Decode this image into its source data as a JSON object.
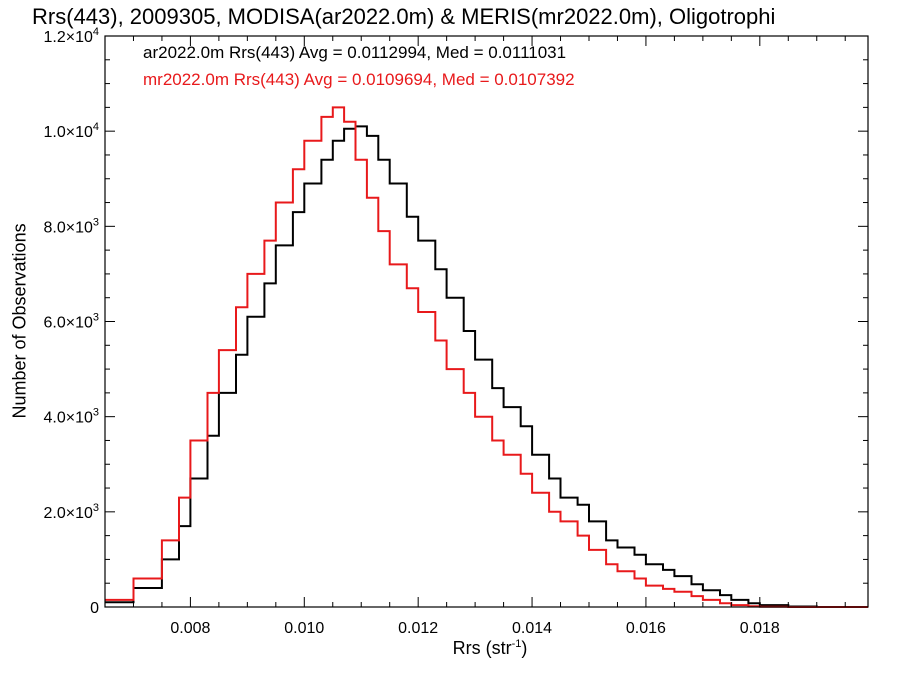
{
  "chart_data": {
    "type": "line",
    "title": "Rrs(443), 2009305, MODISA(ar2022.0m) & MERIS(mr2022.0m), Oligotrophi",
    "xlabel": "Rrs (str",
    "xlabel_sup": "-1",
    "xlabel_suffix": ")",
    "ylabel": "Number of Observations",
    "xlim": [
      0.0065,
      0.0199
    ],
    "ylim": [
      0,
      12000
    ],
    "x_ticks": [
      0.008,
      0.01,
      0.012,
      0.014,
      0.016,
      0.018
    ],
    "x_tick_labels": [
      "0.008",
      "0.010",
      "0.012",
      "0.014",
      "0.016",
      "0.018"
    ],
    "y_ticks": [
      0,
      2000,
      4000,
      6000,
      8000,
      10000,
      12000
    ],
    "y_tick_labels": [
      {
        "base": "0",
        "exp": ""
      },
      {
        "base": "2.0×10",
        "exp": "3"
      },
      {
        "base": "4.0×10",
        "exp": "3"
      },
      {
        "base": "6.0×10",
        "exp": "3"
      },
      {
        "base": "8.0×10",
        "exp": "3"
      },
      {
        "base": "1.0×10",
        "exp": "4"
      },
      {
        "base": "1.2×10",
        "exp": "4"
      }
    ],
    "grid": false,
    "legend_position": "top-left",
    "series": [
      {
        "label": "ar2022.0m Rrs(443) Avg = 0.0112994, Med = 0.0111031",
        "color": "#000000",
        "x": [
          0.0065,
          0.007,
          0.0075,
          0.0078,
          0.008,
          0.0083,
          0.0085,
          0.0088,
          0.009,
          0.0093,
          0.0095,
          0.0098,
          0.01,
          0.0103,
          0.0105,
          0.0107,
          0.0109,
          0.0111,
          0.0113,
          0.0115,
          0.0118,
          0.012,
          0.0123,
          0.0125,
          0.0128,
          0.013,
          0.0133,
          0.0135,
          0.0138,
          0.014,
          0.0143,
          0.0145,
          0.0148,
          0.015,
          0.0153,
          0.0155,
          0.0158,
          0.016,
          0.0163,
          0.0165,
          0.0168,
          0.017,
          0.0173,
          0.0175,
          0.0178,
          0.018,
          0.0185,
          0.019,
          0.0199
        ],
        "y": [
          100,
          400,
          1000,
          1700,
          2700,
          3600,
          4500,
          5300,
          6100,
          6800,
          7600,
          8300,
          8900,
          9400,
          9800,
          10050,
          10100,
          9900,
          9400,
          8900,
          8200,
          7700,
          7100,
          6500,
          5800,
          5200,
          4600,
          4200,
          3800,
          3200,
          2700,
          2300,
          2150,
          1800,
          1400,
          1250,
          1100,
          900,
          780,
          650,
          480,
          350,
          250,
          150,
          80,
          40,
          10,
          0,
          0
        ]
      },
      {
        "label": "mr2022.0m Rrs(443) Avg = 0.0109694, Med = 0.0107392",
        "color": "#e8191b",
        "x": [
          0.0065,
          0.007,
          0.0075,
          0.0078,
          0.008,
          0.0083,
          0.0085,
          0.0088,
          0.009,
          0.0093,
          0.0095,
          0.0098,
          0.01,
          0.0103,
          0.0105,
          0.0107,
          0.0109,
          0.0111,
          0.0113,
          0.0115,
          0.0118,
          0.012,
          0.0123,
          0.0125,
          0.0128,
          0.013,
          0.0133,
          0.0135,
          0.0138,
          0.014,
          0.0143,
          0.0145,
          0.0148,
          0.015,
          0.0153,
          0.0155,
          0.0158,
          0.016,
          0.0163,
          0.0165,
          0.0168,
          0.017,
          0.0173,
          0.0175,
          0.0178,
          0.018,
          0.0185,
          0.019,
          0.0199
        ],
        "y": [
          150,
          600,
          1400,
          2300,
          3500,
          4500,
          5400,
          6300,
          7000,
          7700,
          8500,
          9200,
          9800,
          10300,
          10500,
          10200,
          9400,
          8600,
          7900,
          7200,
          6700,
          6200,
          5600,
          5000,
          4500,
          4000,
          3500,
          3200,
          2800,
          2400,
          2000,
          1800,
          1500,
          1200,
          900,
          750,
          600,
          450,
          380,
          320,
          230,
          150,
          80,
          40,
          15,
          5,
          0,
          0,
          0
        ]
      }
    ]
  }
}
